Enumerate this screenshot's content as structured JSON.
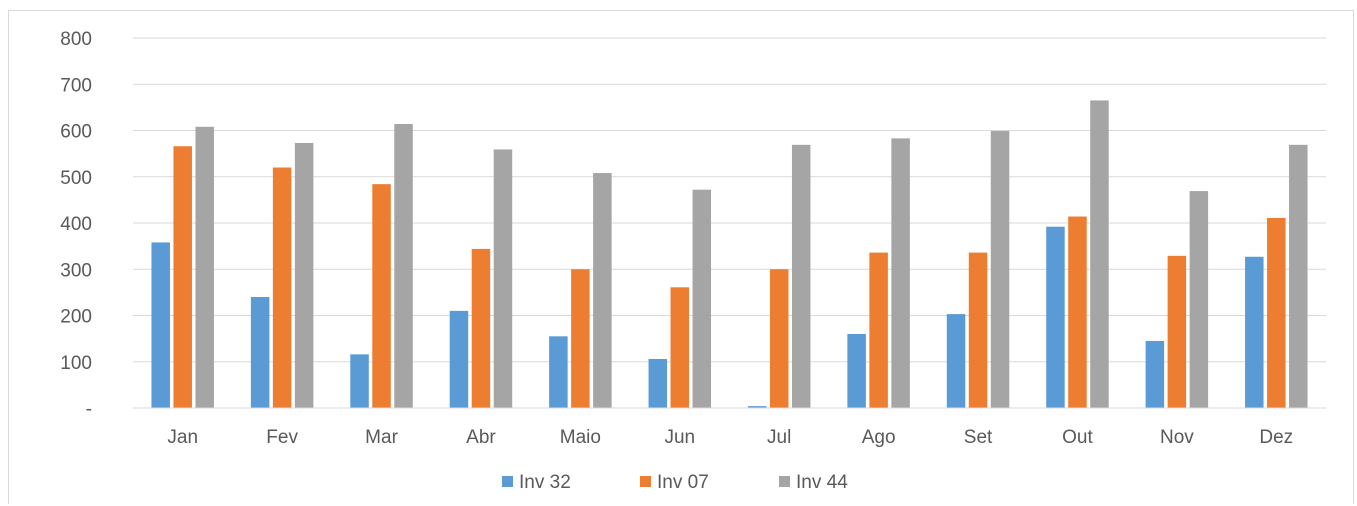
{
  "chart_data": {
    "type": "bar",
    "categories": [
      "Jan",
      "Fev",
      "Mar",
      "Abr",
      "Maio",
      "Jun",
      "Jul",
      "Ago",
      "Set",
      "Out",
      "Nov",
      "Dez"
    ],
    "series": [
      {
        "name": "Inv 32",
        "color": "#5b9bd5",
        "values": [
          358,
          240,
          116,
          210,
          155,
          106,
          4,
          160,
          203,
          392,
          145,
          327
        ]
      },
      {
        "name": "Inv 07",
        "color": "#ed7d31",
        "values": [
          566,
          520,
          484,
          344,
          300,
          261,
          300,
          336,
          336,
          414,
          329,
          411
        ]
      },
      {
        "name": "Inv 44",
        "color": "#a5a5a5",
        "values": [
          608,
          573,
          614,
          559,
          508,
          472,
          569,
          583,
          599,
          665,
          469,
          569
        ]
      }
    ],
    "yticks": [
      "-",
      "100",
      "200",
      "300",
      "400",
      "500",
      "600",
      "700",
      "800"
    ],
    "ylim": [
      0,
      800
    ],
    "grid": true,
    "legend": "bottom-center"
  }
}
